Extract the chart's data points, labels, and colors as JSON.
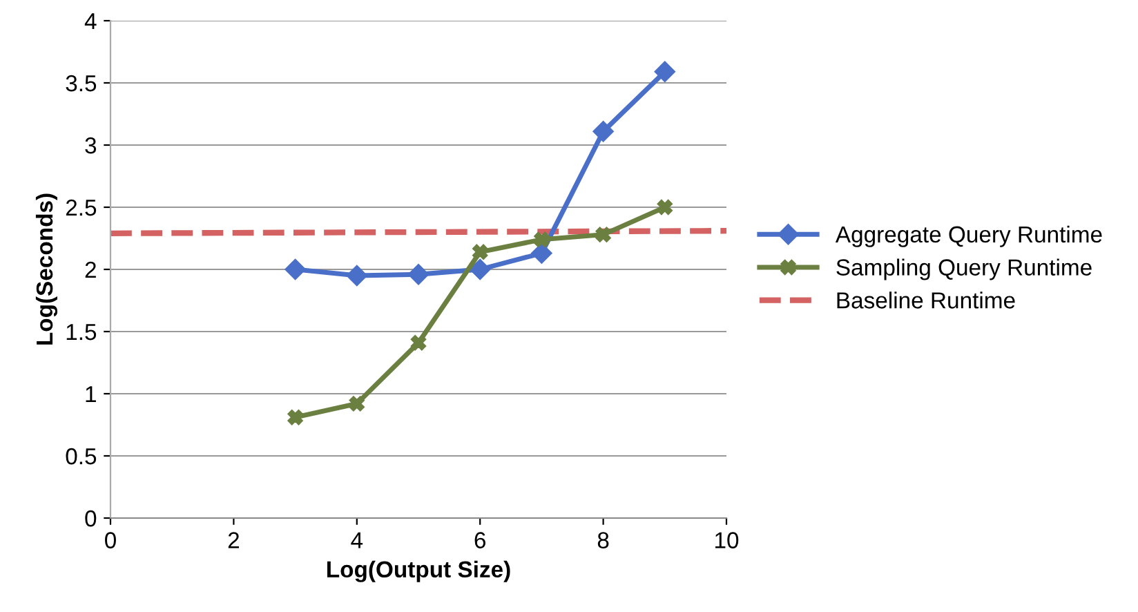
{
  "chart_data": {
    "type": "line",
    "xlabel": "Log(Output Size)",
    "ylabel": "Log(Seconds)",
    "xlim": [
      0,
      10
    ],
    "xticks": [
      0,
      2,
      4,
      6,
      8,
      10
    ],
    "ylim": [
      0,
      4
    ],
    "yticks": [
      0,
      {
        "value": 0.5,
        "label": "0.5"
      },
      1,
      {
        "value": 1.5,
        "label": "1.5"
      },
      2,
      {
        "value": 2.5,
        "label": "2.5"
      },
      3,
      {
        "value": 3.5,
        "label": "3.5"
      },
      4
    ],
    "grid": "y",
    "legend": "right",
    "series": [
      {
        "name": "Aggregate Query Runtime",
        "color": "#4a6fc8",
        "marker": "diamond",
        "line_style": "solid",
        "x": [
          3,
          4,
          5,
          6,
          7,
          8,
          9
        ],
        "values": [
          2.0,
          1.95,
          1.96,
          2.0,
          2.13,
          3.11,
          3.59
        ]
      },
      {
        "name": "Sampling Query Runtime",
        "color": "#6b8040",
        "marker": "cross",
        "line_style": "solid",
        "x": [
          3,
          4,
          5,
          6,
          7,
          8,
          9
        ],
        "values": [
          0.81,
          0.92,
          1.41,
          2.14,
          2.24,
          2.28,
          2.5
        ]
      },
      {
        "name": "Baseline Runtime",
        "color": "#d46262",
        "marker": "none",
        "line_style": "dashed",
        "x": [
          0,
          10
        ],
        "values": [
          2.29,
          2.31
        ]
      }
    ]
  }
}
